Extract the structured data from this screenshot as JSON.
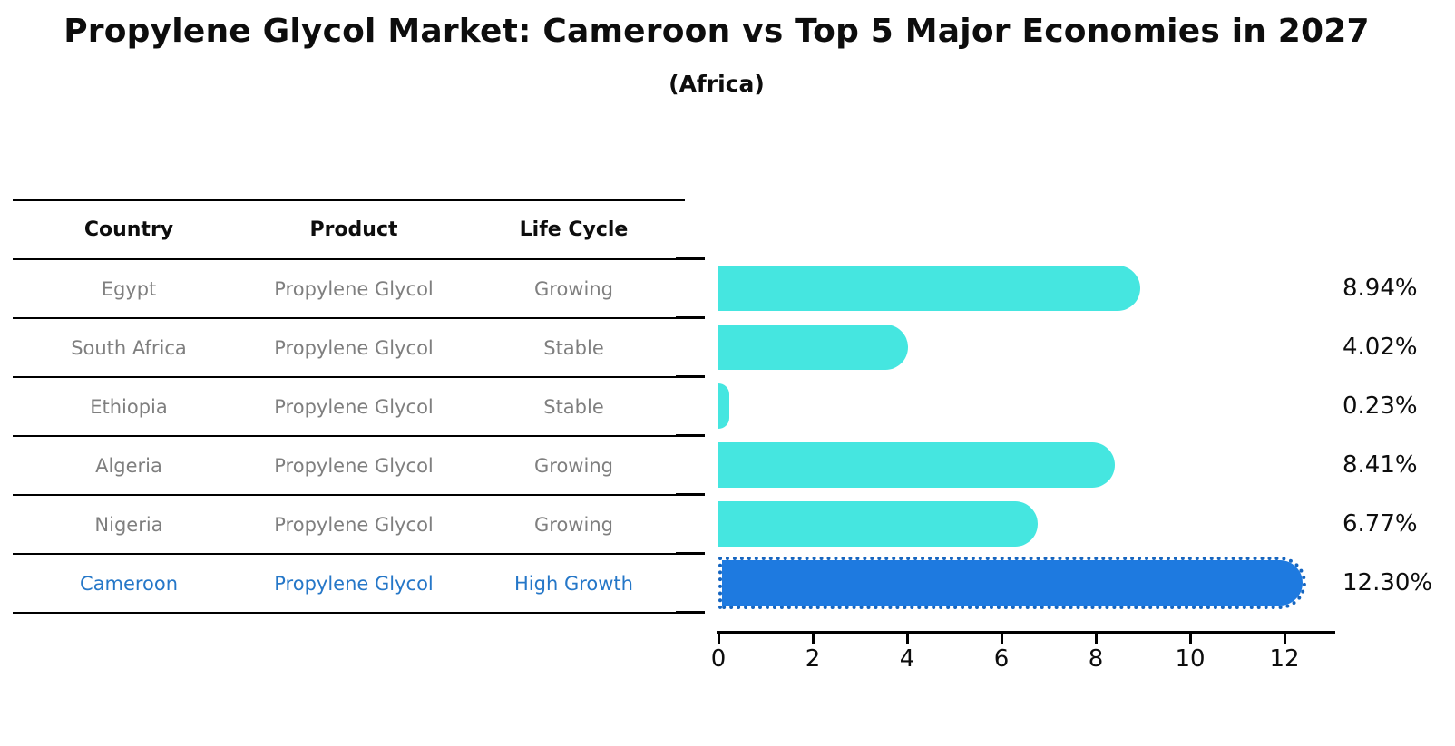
{
  "title": "Propylene Glycol Market: Cameroon vs Top 5 Major Economies in 2027",
  "subtitle": "(Africa)",
  "table": {
    "headers": [
      "Country",
      "Product",
      "Life Cycle"
    ],
    "rows": [
      {
        "country": "Egypt",
        "product": "Propylene Glycol",
        "life_cycle": "Growing",
        "highlight": false
      },
      {
        "country": "South Africa",
        "product": "Propylene Glycol",
        "life_cycle": "Stable",
        "highlight": false
      },
      {
        "country": "Ethiopia",
        "product": "Propylene Glycol",
        "life_cycle": "Stable",
        "highlight": false
      },
      {
        "country": "Algeria",
        "product": "Propylene Glycol",
        "life_cycle": "Growing",
        "highlight": false
      },
      {
        "country": "Nigeria",
        "product": "Propylene Glycol",
        "life_cycle": "Growing",
        "highlight": false
      },
      {
        "country": "Cameroon",
        "product": "Propylene Glycol",
        "life_cycle": "High Growth",
        "highlight": true
      }
    ]
  },
  "chart_data": {
    "type": "bar",
    "orientation": "horizontal",
    "title": "Propylene Glycol Market: Cameroon vs Top 5 Major Economies in 2027",
    "subtitle": "(Africa)",
    "categories": [
      "Egypt",
      "South Africa",
      "Ethiopia",
      "Algeria",
      "Nigeria",
      "Cameroon"
    ],
    "values": [
      8.94,
      4.02,
      0.23,
      8.41,
      6.77,
      12.3
    ],
    "labels": [
      "8.94%",
      "4.02%",
      "0.23%",
      "8.41%",
      "6.77%",
      "12.30%"
    ],
    "xlabel": "",
    "ylabel": "",
    "xlim": [
      0,
      13.1
    ],
    "xticks": [
      0,
      2,
      4,
      6,
      8,
      10,
      12
    ],
    "grid": false,
    "legend": "none",
    "highlight_index": 5,
    "bar_color": "#45E6E0",
    "highlight_color": "#1E7AE0",
    "highlight_edge_color": "#1565C0",
    "highlight_edge_style": "dotted"
  },
  "colors": {
    "bar_teal": "#45E6E0",
    "bar_blue": "#1E7AE0",
    "bar_blue_edge": "#1565C0",
    "row_text_gray": "#7F7F7F",
    "highlight_text_blue": "#2577C8",
    "line_black": "#000000"
  }
}
